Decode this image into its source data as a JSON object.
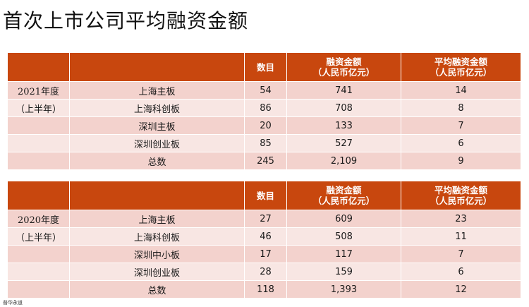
{
  "title": "首次上市公司平均融资金额",
  "headers": {
    "count": "数目",
    "amount_line1": "融资金额",
    "amount_line2": "（人民币亿元）",
    "avg_line1": "平均融资金额",
    "avg_line2": "（人民币亿元）"
  },
  "tables": [
    {
      "period_line1": "2021年度",
      "period_line2": "（上半年）",
      "rows": [
        {
          "board": "上海主板",
          "count": "54",
          "amount": "741",
          "avg": "14"
        },
        {
          "board": "上海科创板",
          "count": "86",
          "amount": "708",
          "avg": "8"
        },
        {
          "board": "深圳主板",
          "count": "20",
          "amount": "133",
          "avg": "7"
        },
        {
          "board": "深圳创业板",
          "count": "85",
          "amount": "527",
          "avg": "6"
        },
        {
          "board": "总数",
          "count": "245",
          "amount": "2,109",
          "avg": "9"
        }
      ]
    },
    {
      "period_line1": "2020年度",
      "period_line2": "（上半年）",
      "rows": [
        {
          "board": "上海主板",
          "count": "27",
          "amount": "609",
          "avg": "23"
        },
        {
          "board": "上海科创板",
          "count": "46",
          "amount": "508",
          "avg": "11"
        },
        {
          "board": "深圳中小板",
          "count": "17",
          "amount": "117",
          "avg": "7"
        },
        {
          "board": "深圳创业板",
          "count": "28",
          "amount": "159",
          "avg": "6"
        },
        {
          "board": "总数",
          "count": "118",
          "amount": "1,393",
          "avg": "12"
        }
      ]
    }
  ],
  "footer": "普华永道"
}
